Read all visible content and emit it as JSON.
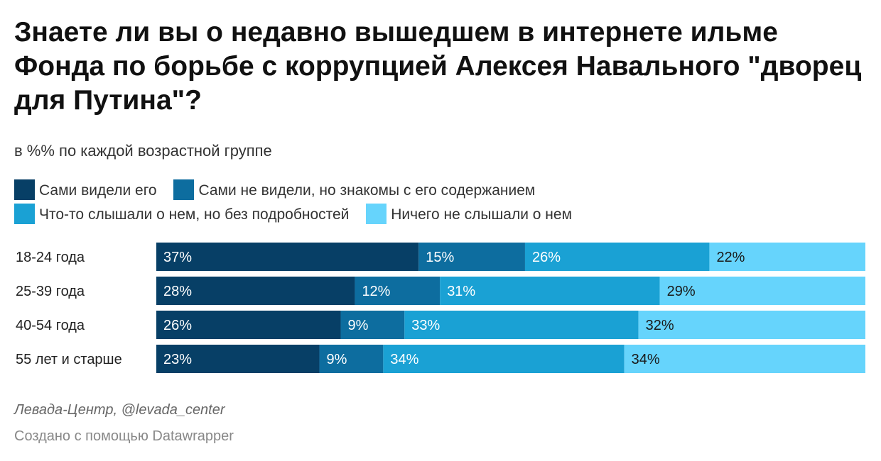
{
  "title": "Знаете ли вы о недавно вышедшем в интернете ильме Фонда по борьбе с коррупцией Алексея Навального \"дворец для Путина\"?",
  "subtitle": "в %% по каждой возрастной группе",
  "legend": [
    {
      "label": "Сами видели его",
      "color": "#073f66"
    },
    {
      "label": "Сами не видели, но знакомы с его содержанием",
      "color": "#0d6d9f"
    },
    {
      "label": "Что-то слышали о нем, но без подробностей",
      "color": "#1aa1d4"
    },
    {
      "label": "Ничего не слышали о нем",
      "color": "#66d4fc"
    }
  ],
  "source": "Левада-Центр, @levada_center",
  "credit": "Создано с помощью Datawrapper",
  "chart_data": {
    "type": "bar",
    "stacked": true,
    "orientation": "horizontal",
    "unit": "%",
    "categories": [
      "18-24 года",
      "25-39 года",
      "40-54 года",
      "55 лет и старше"
    ],
    "series": [
      {
        "name": "Сами видели его",
        "values": [
          37,
          28,
          26,
          23
        ],
        "color": "#073f66",
        "label_color": "#ffffff"
      },
      {
        "name": "Сами не видели, но знакомы с его содержанием",
        "values": [
          15,
          12,
          9,
          9
        ],
        "color": "#0d6d9f",
        "label_color": "#ffffff"
      },
      {
        "name": "Что-то слышали о нем, но без подробностей",
        "values": [
          26,
          31,
          33,
          34
        ],
        "color": "#1aa1d4",
        "label_color": "#ffffff"
      },
      {
        "name": "Ничего не слышали о нем",
        "values": [
          22,
          29,
          32,
          34
        ],
        "color": "#66d4fc",
        "label_color": "#1a1a1a"
      }
    ],
    "xlim": [
      0,
      100
    ],
    "grid": false,
    "legend_position": "top"
  }
}
